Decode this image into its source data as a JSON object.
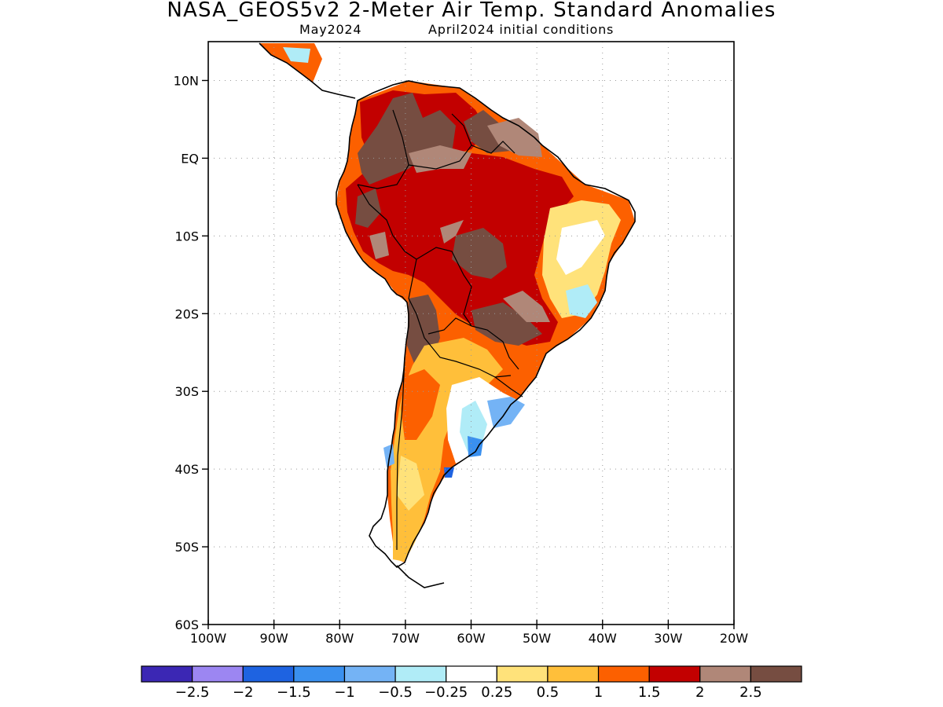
{
  "title": "NASA_GEOS5v2 2-Meter Air Temp. Standard Anomalies",
  "subtitle_left": "May2024",
  "subtitle_right": "April2024 initial conditions",
  "map": {
    "projection": "equirectangular",
    "lon_range": [
      -100,
      -20
    ],
    "lat_range": [
      -60,
      15
    ],
    "gridlines": "dotted",
    "y_ticks": [
      {
        "value": 10,
        "label": "10N"
      },
      {
        "value": 0,
        "label": "EQ"
      },
      {
        "value": -10,
        "label": "10S"
      },
      {
        "value": -20,
        "label": "20S"
      },
      {
        "value": -30,
        "label": "30S"
      },
      {
        "value": -40,
        "label": "40S"
      },
      {
        "value": -50,
        "label": "50S"
      },
      {
        "value": -60,
        "label": "60S"
      }
    ],
    "x_ticks": [
      {
        "value": -100,
        "label": "100W"
      },
      {
        "value": -90,
        "label": "90W"
      },
      {
        "value": -80,
        "label": "80W"
      },
      {
        "value": -70,
        "label": "70W"
      },
      {
        "value": -60,
        "label": "60W"
      },
      {
        "value": -50,
        "label": "50W"
      },
      {
        "value": -40,
        "label": "40W"
      },
      {
        "value": -30,
        "label": "30W"
      },
      {
        "value": -20,
        "label": "20W"
      }
    ]
  },
  "colorbar": {
    "colors": [
      "#3b27b4",
      "#9c86f2",
      "#1e63e1",
      "#3a90ef",
      "#74b3f5",
      "#b0ecf7",
      "#ffffff",
      "#ffe27a",
      "#ffbf3a",
      "#fc6000",
      "#c20000",
      "#b08778",
      "#764d41"
    ],
    "labels": [
      "-2.5",
      "-2",
      "-1.5",
      "-1",
      "-0.5",
      "-0.25",
      "0.25",
      "0.5",
      "1",
      "1.5",
      "2",
      "2.5"
    ]
  }
}
